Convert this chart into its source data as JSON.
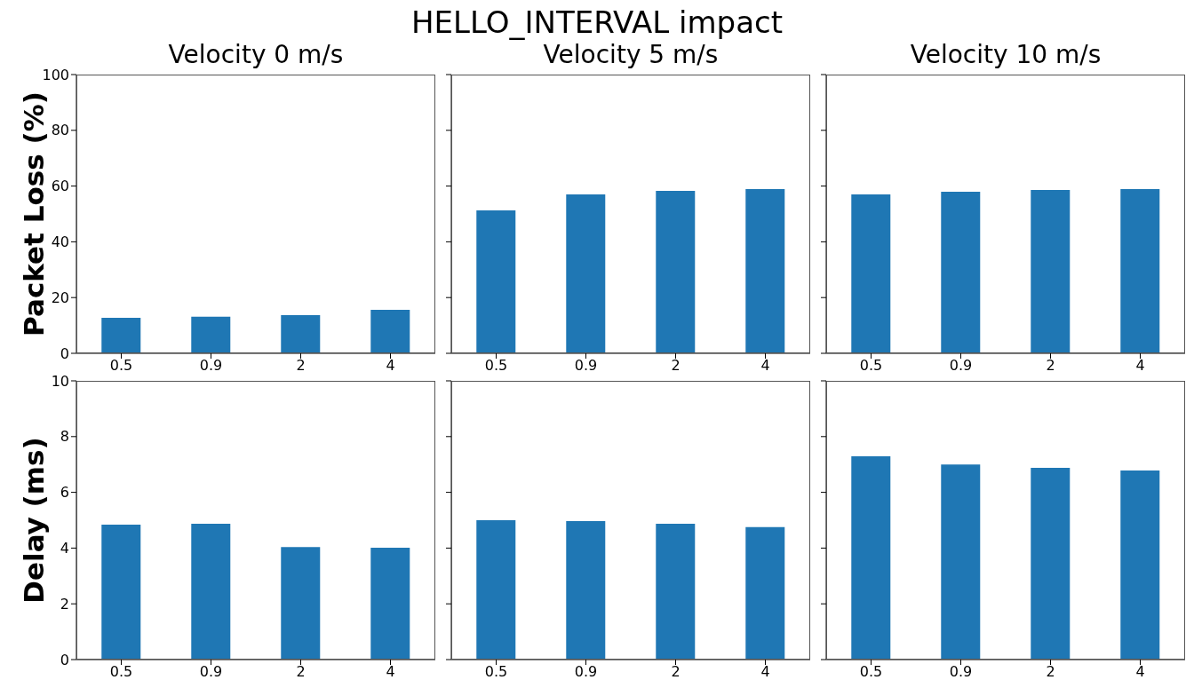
{
  "chart_data": [
    {
      "type": "bar",
      "title": "Velocity 0 m/s",
      "ylabel": "Packet Loss (%)",
      "annotations": [
        "HELLO_INTERVAL impact"
      ],
      "categories": [
        "0.5",
        "0.9",
        "2",
        "4"
      ],
      "values": [
        12.7,
        13.1,
        13.7,
        15.6
      ],
      "color": "#1f77b4",
      "ylim": [
        0,
        100
      ],
      "yticks": [
        0,
        20,
        40,
        60,
        80,
        100
      ]
    },
    {
      "type": "bar",
      "title": "Velocity 5 m/s",
      "categories": [
        "0.5",
        "0.9",
        "2",
        "4"
      ],
      "values": [
        51.3,
        57.0,
        58.3,
        58.9
      ],
      "color": "#1f77b4",
      "ylim": [
        0,
        100
      ],
      "yticks": [
        0,
        20,
        40,
        60,
        80,
        100
      ],
      "tick_labels": "x"
    },
    {
      "type": "bar",
      "title": "Velocity 10 m/s",
      "categories": [
        "0.5",
        "0.9",
        "2",
        "4"
      ],
      "values": [
        57.0,
        58.0,
        58.6,
        58.9
      ],
      "color": "#1f77b4",
      "ylim": [
        0,
        100
      ],
      "yticks": [
        0,
        20,
        40,
        60,
        80,
        100
      ],
      "tick_labels": "x"
    },
    {
      "type": "bar",
      "ylabel": "Delay (ms)",
      "categories": [
        "0.5",
        "0.9",
        "2",
        "4"
      ],
      "values": [
        4.84,
        4.87,
        4.04,
        4.01
      ],
      "color": "#1f77b4",
      "ylim": [
        0,
        10
      ],
      "yticks": [
        0,
        2,
        4,
        6,
        8,
        10
      ]
    },
    {
      "type": "bar",
      "categories": [
        "0.5",
        "0.9",
        "2",
        "4"
      ],
      "values": [
        5.0,
        4.97,
        4.87,
        4.75
      ],
      "color": "#1f77b4",
      "ylim": [
        0,
        10
      ],
      "yticks": [
        0,
        2,
        4,
        6,
        8,
        10
      ],
      "tick_labels": "x"
    },
    {
      "type": "bar",
      "categories": [
        "0.5",
        "0.9",
        "2",
        "4"
      ],
      "values": [
        7.29,
        7.0,
        6.88,
        6.78
      ],
      "color": "#1f77b4",
      "ylim": [
        0,
        10
      ],
      "yticks": [
        0,
        2,
        4,
        6,
        8,
        10
      ],
      "tick_labels": "x"
    }
  ]
}
